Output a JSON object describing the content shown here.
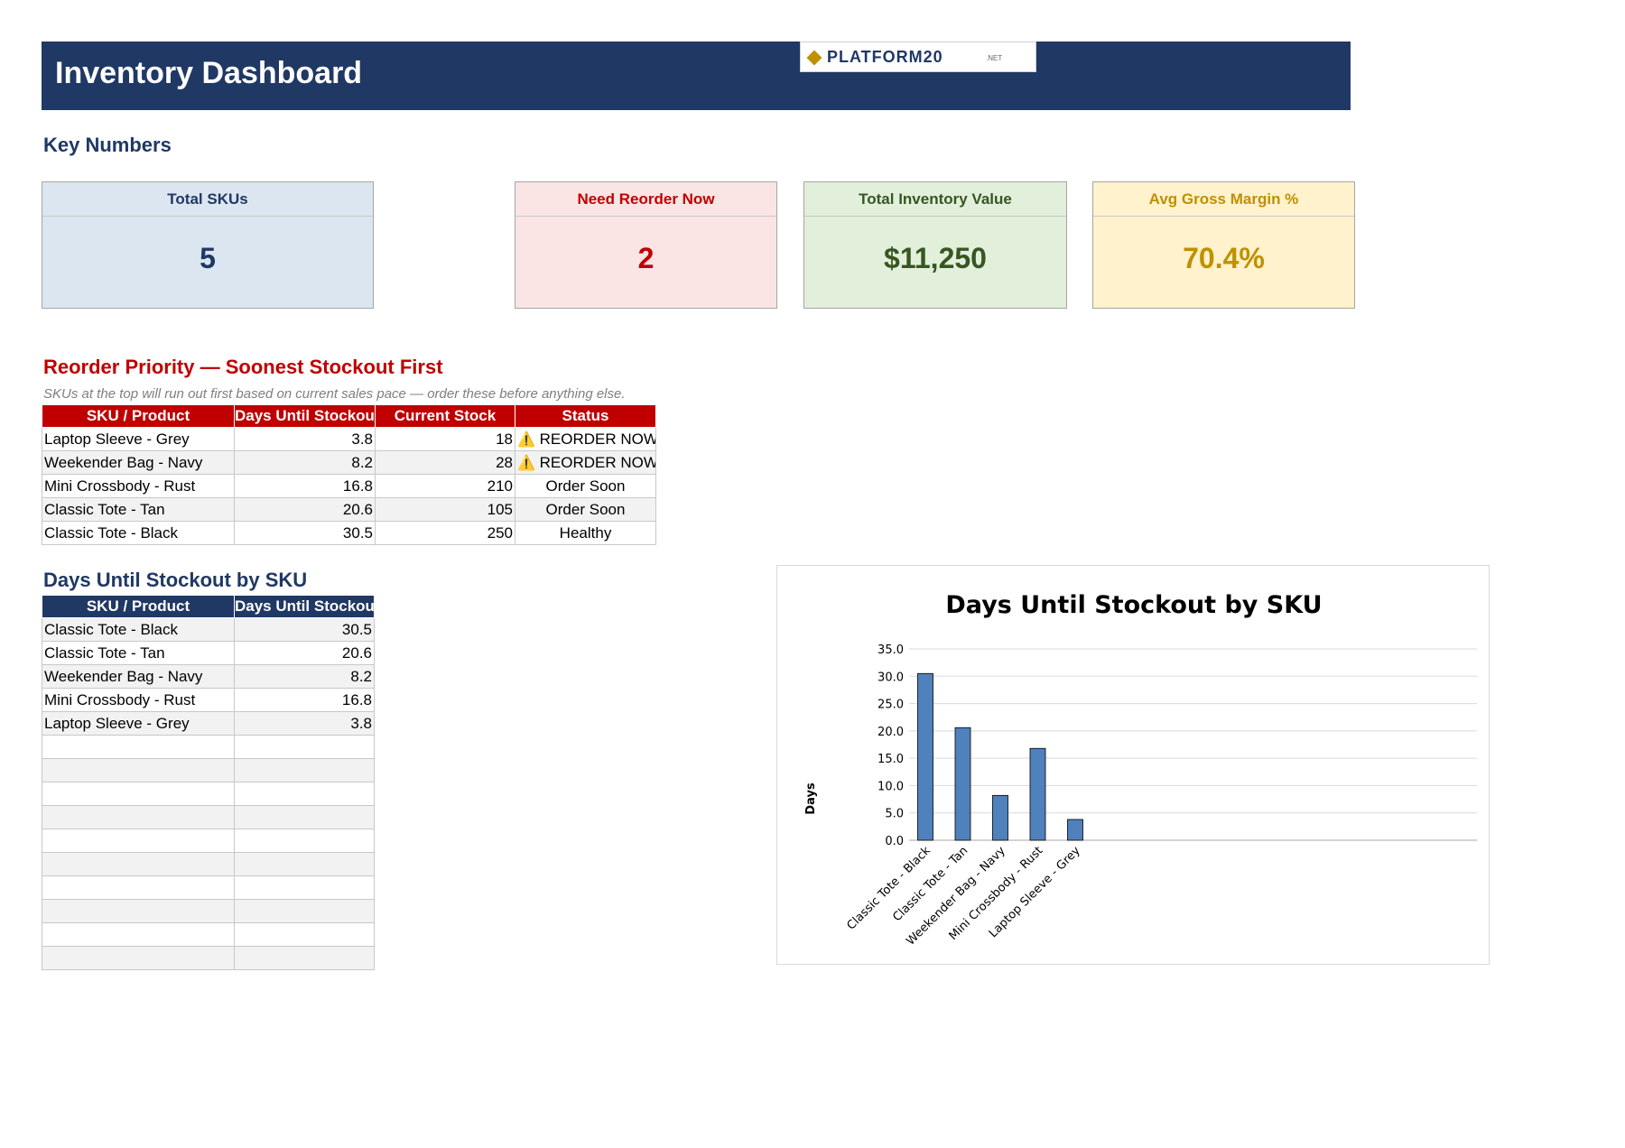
{
  "header": {
    "title": "Inventory Dashboard",
    "logo_text": "PLATFORM20",
    "logo_suffix": ".NET"
  },
  "key_numbers": {
    "title": "Key Numbers",
    "cards": [
      {
        "label": "Total SKUs",
        "value": "5"
      },
      {
        "label": "Need Reorder Now",
        "value": "2"
      },
      {
        "label": "Total Inventory Value",
        "value": "$11,250"
      },
      {
        "label": "Avg Gross Margin %",
        "value": "70.4%"
      }
    ]
  },
  "reorder": {
    "title": "Reorder Priority — Soonest Stockout First",
    "note": "SKUs at the top will run out first based on current sales pace — order these before anything else.",
    "columns": [
      "SKU / Product",
      "Days Until Stockout",
      "Current Stock",
      "Status"
    ],
    "rows": [
      {
        "sku": "Laptop Sleeve - Grey",
        "days": "3.8",
        "stock": "18",
        "status": "REORDER NOW",
        "warn_icon": "⚠️"
      },
      {
        "sku": "Weekender Bag - Navy",
        "days": "8.2",
        "stock": "28",
        "status": "REORDER NOW",
        "warn_icon": "⚠️"
      },
      {
        "sku": "Mini Crossbody - Rust",
        "days": "16.8",
        "stock": "210",
        "status": "Order Soon",
        "warn_icon": ""
      },
      {
        "sku": "Classic Tote - Tan",
        "days": "20.6",
        "stock": "105",
        "status": "Order Soon",
        "warn_icon": ""
      },
      {
        "sku": "Classic Tote - Black",
        "days": "30.5",
        "stock": "250",
        "status": "Healthy",
        "warn_icon": ""
      }
    ]
  },
  "stockout_table": {
    "title": "Days Until Stockout by SKU",
    "columns": [
      "SKU / Product",
      "Days Until Stockout"
    ],
    "rows": [
      {
        "sku": "Classic Tote - Black",
        "days": "30.5"
      },
      {
        "sku": "Classic Tote - Tan",
        "days": "20.6"
      },
      {
        "sku": "Weekender Bag - Navy",
        "days": "8.2"
      },
      {
        "sku": "Mini Crossbody - Rust",
        "days": "16.8"
      },
      {
        "sku": "Laptop Sleeve - Grey",
        "days": "3.8"
      }
    ]
  },
  "colors": {
    "header_bg": "#203864",
    "reorder_header": "#c00000",
    "bar": "#4f81bd",
    "card_blue_bg": "#dce6f1",
    "card_red_bg": "#fbe4e4",
    "card_green_bg": "#e2efda",
    "card_yellow_bg": "#fff2cc"
  },
  "chart_data": {
    "type": "bar",
    "title": "Days Until Stockout by SKU",
    "xlabel": "",
    "ylabel": "Days",
    "categories": [
      "Classic Tote - Black",
      "Classic Tote - Tan",
      "Weekender Bag - Navy",
      "Mini Crossbody - Rust",
      "Laptop Sleeve - Grey"
    ],
    "values": [
      30.5,
      20.6,
      8.2,
      16.8,
      3.8
    ],
    "ylim": [
      0,
      35
    ],
    "yticks": [
      "0.0",
      "5.0",
      "10.0",
      "15.0",
      "20.0",
      "25.0",
      "30.0",
      "35.0"
    ],
    "grid": true,
    "legend": "none"
  }
}
